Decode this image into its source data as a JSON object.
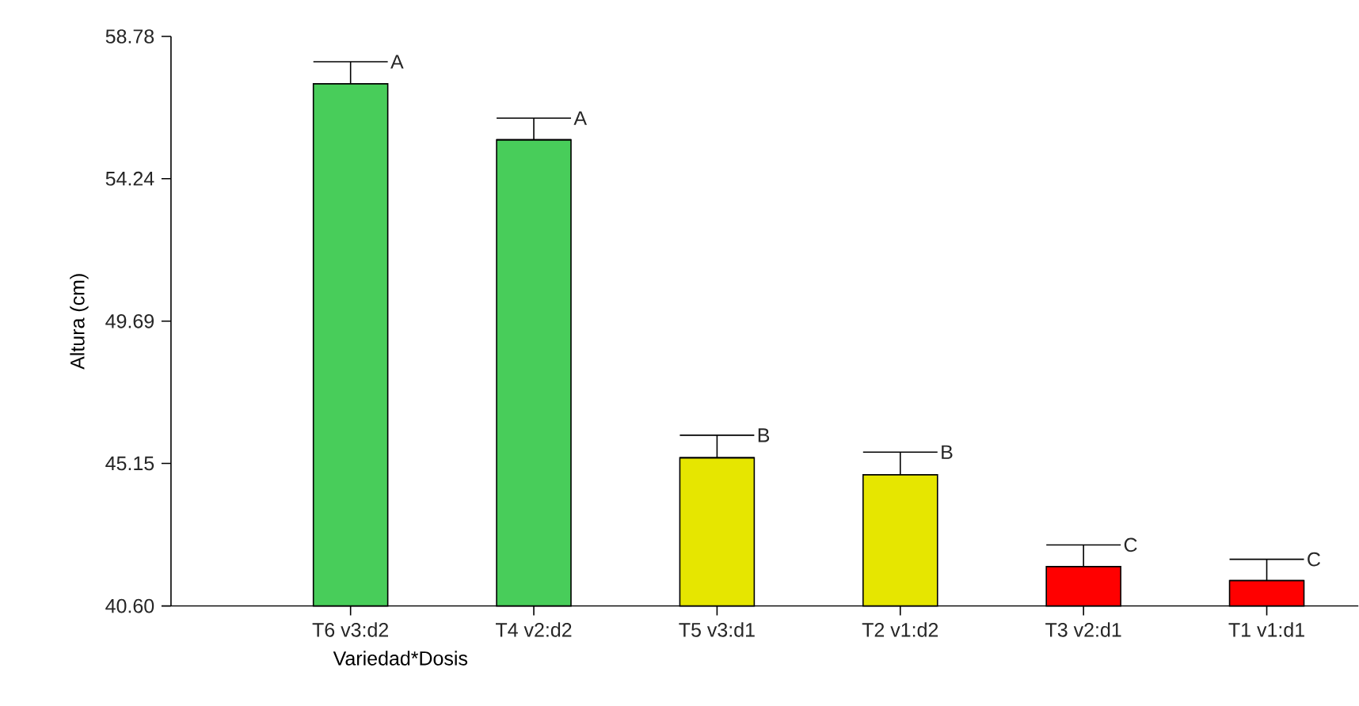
{
  "chart_data": {
    "type": "bar",
    "xlabel": "Variedad*Dosis",
    "ylabel": "Altura (cm)",
    "categories": [
      "T6 v3:d2",
      "T4 v2:d2",
      "T5 v3:d1",
      "T2 v1:d2",
      "T3 v2:d1",
      "T1 v1:d1"
    ],
    "values": [
      57.27,
      55.48,
      45.33,
      44.79,
      41.86,
      41.41
    ],
    "errors": [
      [
        57.27,
        57.97
      ],
      [
        55.48,
        56.17
      ],
      [
        45.33,
        46.05
      ],
      [
        44.79,
        45.51
      ],
      [
        41.86,
        42.55
      ],
      [
        41.41,
        42.09
      ]
    ],
    "colors": [
      "#48cd5a",
      "#48cd5a",
      "#e6e600",
      "#e6e600",
      "#ff0000",
      "#ff0000"
    ],
    "ylim": [
      40.6,
      58.78
    ],
    "yticks": [
      {
        "value": 40.6,
        "label": "40.60"
      },
      45.15,
      49.69,
      54.24,
      58.78
    ],
    "annotations": [
      {
        "text": "A",
        "x": "T6 v3:d2",
        "y": 57.97
      },
      {
        "text": "A",
        "x": "T4 v2:d2",
        "y": 56.17
      },
      {
        "text": "B",
        "x": "T5 v3:d1",
        "y": 46.05
      },
      {
        "text": "B",
        "x": "T2 v1:d2",
        "y": 45.51
      },
      {
        "text": "C",
        "x": "T3 v2:d1",
        "y": 42.55
      },
      {
        "text": "C",
        "x": "T1 v1:d1",
        "y": 42.09
      }
    ]
  }
}
